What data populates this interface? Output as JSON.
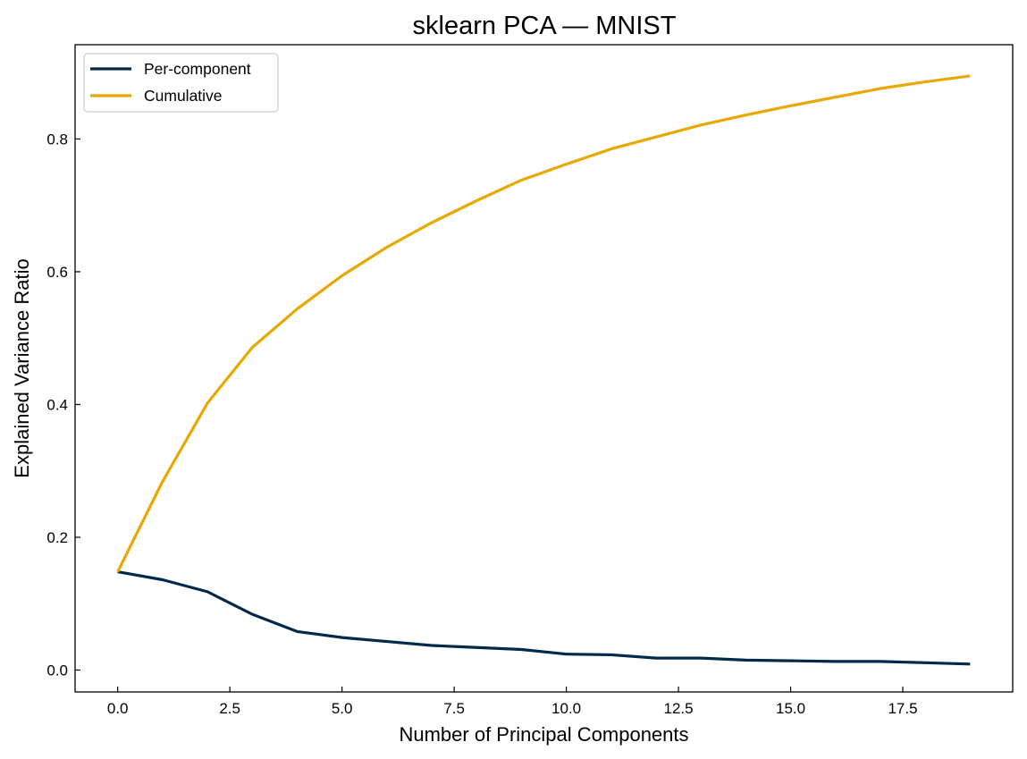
{
  "chart_data": {
    "type": "line",
    "title": "sklearn PCA — MNIST",
    "xlabel": "Number of Principal Components",
    "ylabel": "Explained Variance Ratio",
    "xlim": [
      -0.95,
      19.95
    ],
    "ylim": [
      -0.033,
      0.942
    ],
    "x_ticks": [
      0.0,
      2.5,
      5.0,
      7.5,
      10.0,
      12.5,
      15.0,
      17.5
    ],
    "x_tick_labels": [
      "0.0",
      "2.5",
      "5.0",
      "7.5",
      "10.0",
      "12.5",
      "15.0",
      "17.5"
    ],
    "y_ticks": [
      0.0,
      0.2,
      0.4,
      0.6,
      0.8
    ],
    "y_tick_labels": [
      "0.0",
      "0.2",
      "0.4",
      "0.6",
      "0.8"
    ],
    "grid": false,
    "legend_position": "top-left",
    "x": [
      0,
      1,
      2,
      3,
      4,
      5,
      6,
      7,
      8,
      9,
      10,
      11,
      12,
      13,
      14,
      15,
      16,
      17,
      18,
      19
    ],
    "series": [
      {
        "name": "Per-component",
        "color": "#012a4a",
        "values": [
          0.148,
          0.136,
          0.118,
          0.084,
          0.058,
          0.049,
          0.043,
          0.037,
          0.034,
          0.031,
          0.024,
          0.023,
          0.018,
          0.018,
          0.015,
          0.014,
          0.013,
          0.013,
          0.011,
          0.009
        ]
      },
      {
        "name": "Cumulative",
        "color": "#e8a800",
        "values": [
          0.148,
          0.284,
          0.402,
          0.486,
          0.544,
          0.594,
          0.637,
          0.674,
          0.707,
          0.738,
          0.762,
          0.785,
          0.803,
          0.821,
          0.836,
          0.85,
          0.863,
          0.876,
          0.886,
          0.895
        ]
      }
    ]
  }
}
